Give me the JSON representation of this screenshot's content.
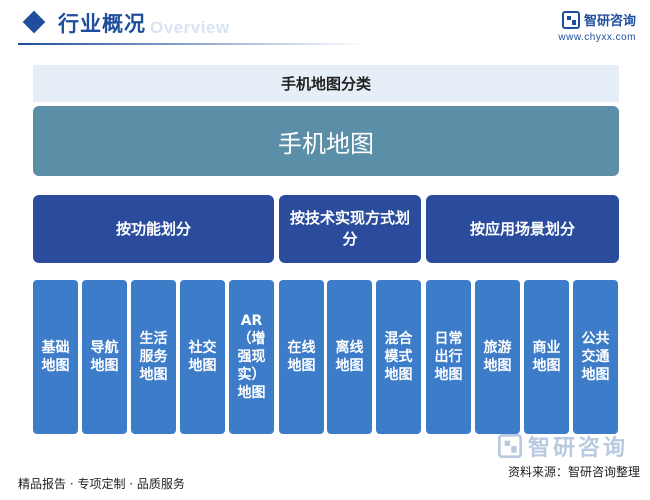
{
  "header": {
    "title": "行业概况",
    "subtitle": "Overview",
    "logo_name": "智研咨询",
    "logo_url": "www.chyxx.com"
  },
  "diagram": {
    "title": "手机地图分类",
    "root": "手机地图",
    "categories": [
      {
        "label": "按功能划分"
      },
      {
        "label": "按技术实现方式划分"
      },
      {
        "label": "按应用场景划分"
      }
    ],
    "leaves": [
      {
        "label": "基础地图",
        "category": "按功能划分"
      },
      {
        "label": "导航地图",
        "category": "按功能划分"
      },
      {
        "label": "生活服务地图",
        "category": "按功能划分"
      },
      {
        "label": "社交地图",
        "category": "按功能划分"
      },
      {
        "label": "AR（增强现实）地图",
        "category": "按功能划分"
      },
      {
        "label": "在线地图",
        "category": "按技术实现方式划分"
      },
      {
        "label": "离线地图",
        "category": "按技术实现方式划分"
      },
      {
        "label": "混合模式地图",
        "category": "按技术实现方式划分"
      },
      {
        "label": "日常出行地图",
        "category": "按应用场景划分"
      },
      {
        "label": "旅游地图",
        "category": "按应用场景划分"
      },
      {
        "label": "商业地图",
        "category": "按应用场景划分"
      },
      {
        "label": "公共交通地图",
        "category": "按应用场景划分"
      }
    ]
  },
  "footer": {
    "tagline": "精品报告 · 专项定制 · 品质服务",
    "source": "资料来源：智研咨询整理",
    "watermark": "智研咨询"
  },
  "colors": {
    "brand": "#1f4e9c",
    "root": "#5b8fa8",
    "category": "#2b4c9d",
    "leaf": "#3d7cc9"
  }
}
